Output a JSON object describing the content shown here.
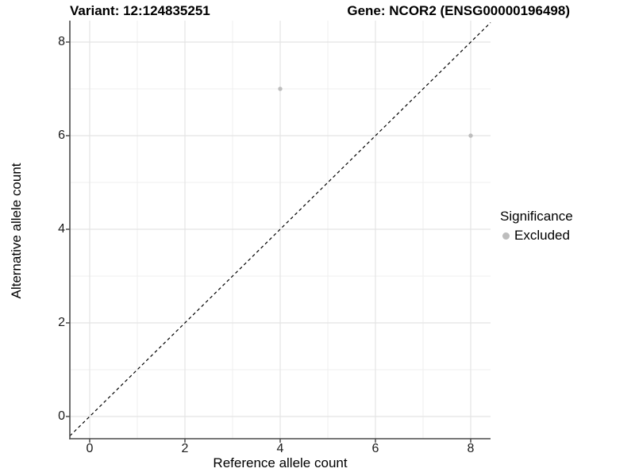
{
  "chart_data": {
    "type": "scatter",
    "title_left": "Variant: 12:124835251",
    "title_right": "Gene: NCOR2 (ENSG00000196498)",
    "xlabel": "Reference allele count",
    "ylabel": "Alternative allele count",
    "xlim": [
      -0.42,
      8.42
    ],
    "ylim": [
      -0.48,
      8.44
    ],
    "xticks": [
      0,
      2,
      4,
      6,
      8
    ],
    "yticks": [
      0,
      2,
      4,
      6,
      8
    ],
    "minor_xticks": [
      1,
      3,
      5,
      7
    ],
    "minor_yticks": [
      1,
      3,
      5,
      7
    ],
    "grid": "on",
    "series": [
      {
        "name": "Excluded",
        "color": "#bdbdbd",
        "points": [
          {
            "x": 4,
            "y": 7
          },
          {
            "x": 8,
            "y": 6
          }
        ]
      }
    ],
    "reference_line": {
      "type": "identity",
      "style": "dashed",
      "color": "#000000"
    },
    "legend": {
      "title": "Significance",
      "position": "right",
      "entries": [
        {
          "label": "Excluded",
          "color": "#bdbdbd"
        }
      ]
    }
  },
  "colors": {
    "grid_major": "#e4e4e4",
    "grid_minor": "#efefef",
    "axis": "#4a4a4a",
    "tick_text": "#1a1a1a",
    "background": "#ffffff"
  }
}
